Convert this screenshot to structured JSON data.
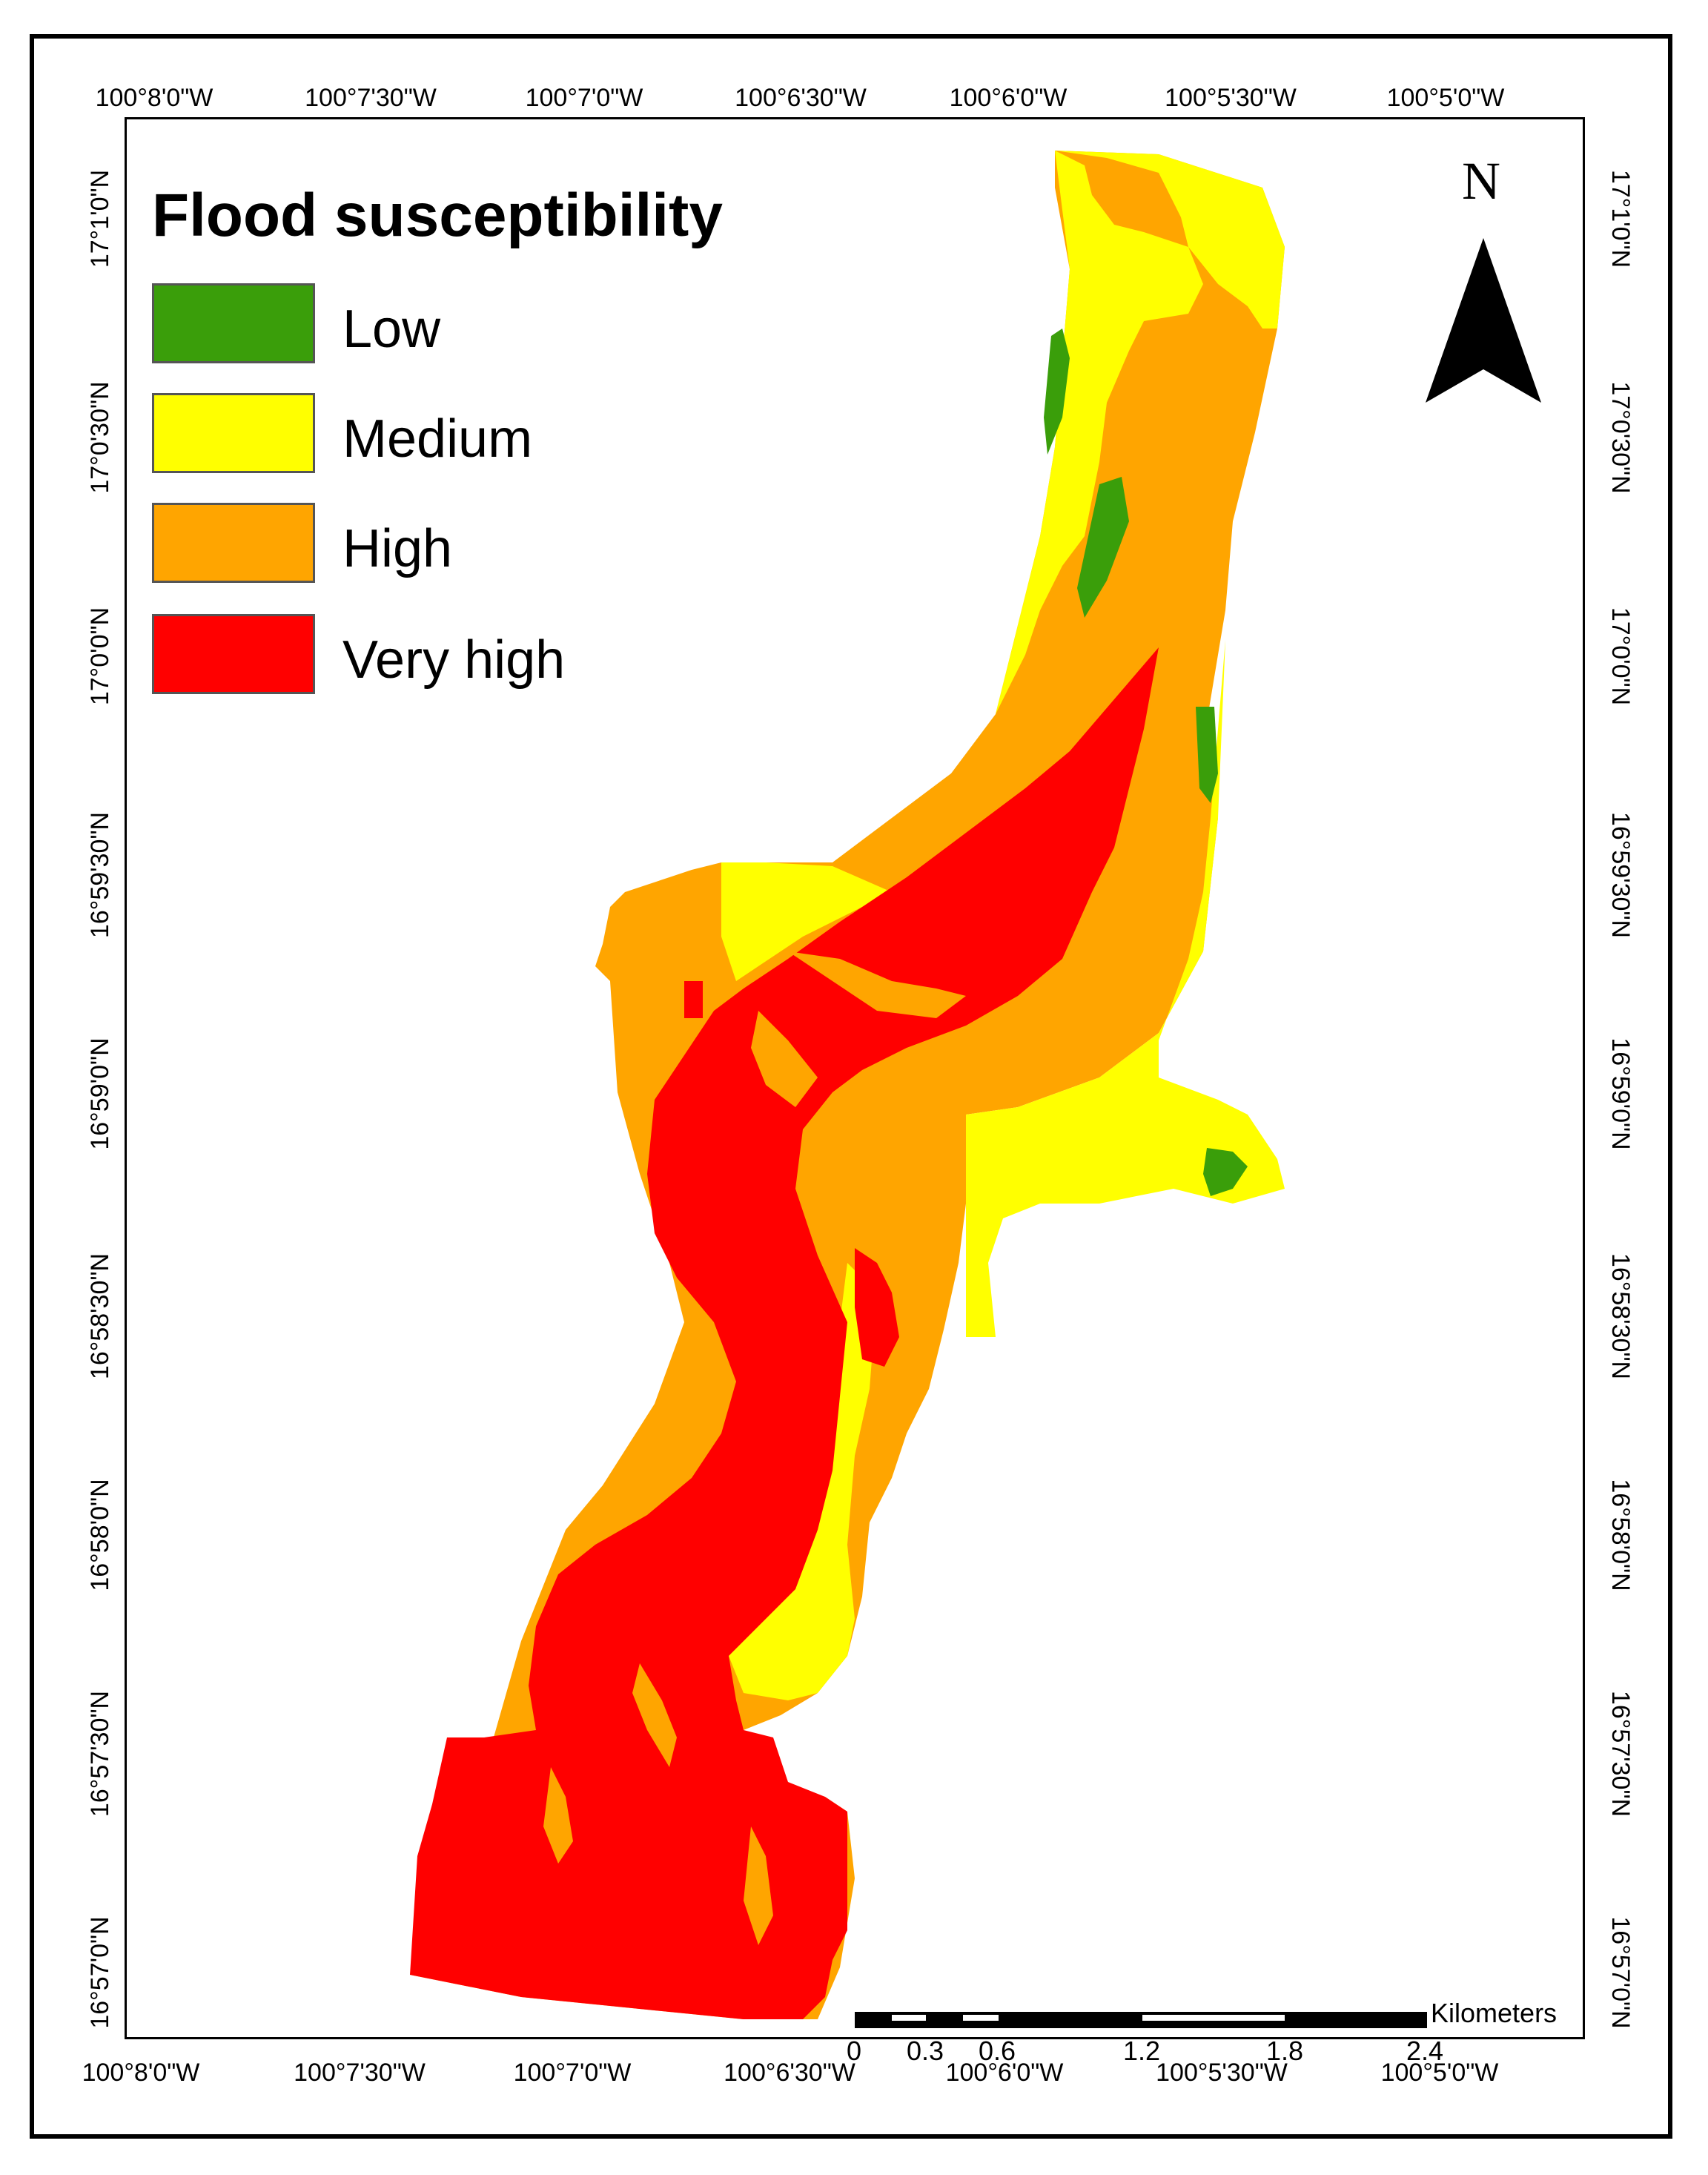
{
  "legend": {
    "title": "Flood susceptibility",
    "items": [
      {
        "label": "Low",
        "color": "#3a9e0a"
      },
      {
        "label": "Medium",
        "color": "#ffff00"
      },
      {
        "label": "High",
        "color": "#ffa500"
      },
      {
        "label": "Very high",
        "color": "#ff0000"
      }
    ]
  },
  "north_arrow": {
    "label": "N"
  },
  "graticule": {
    "longitude_labels": [
      "100°8'0\"W",
      "100°7'30\"W",
      "100°7'0\"W",
      "100°6'30\"W",
      "100°6'0\"W",
      "100°5'30\"W",
      "100°5'0\"W"
    ],
    "latitude_labels": [
      "17°1'0\"N",
      "17°0'30\"N",
      "17°0'0\"N",
      "16°59'30\"N",
      "16°59'0\"N",
      "16°58'30\"N",
      "16°58'0\"N",
      "16°57'30\"N",
      "16°57'0\"N"
    ]
  },
  "scale_bar": {
    "unit": "Kilometers",
    "labels": [
      "0",
      "0.3",
      "0.6",
      "1.2",
      "1.8",
      "2.4"
    ]
  }
}
